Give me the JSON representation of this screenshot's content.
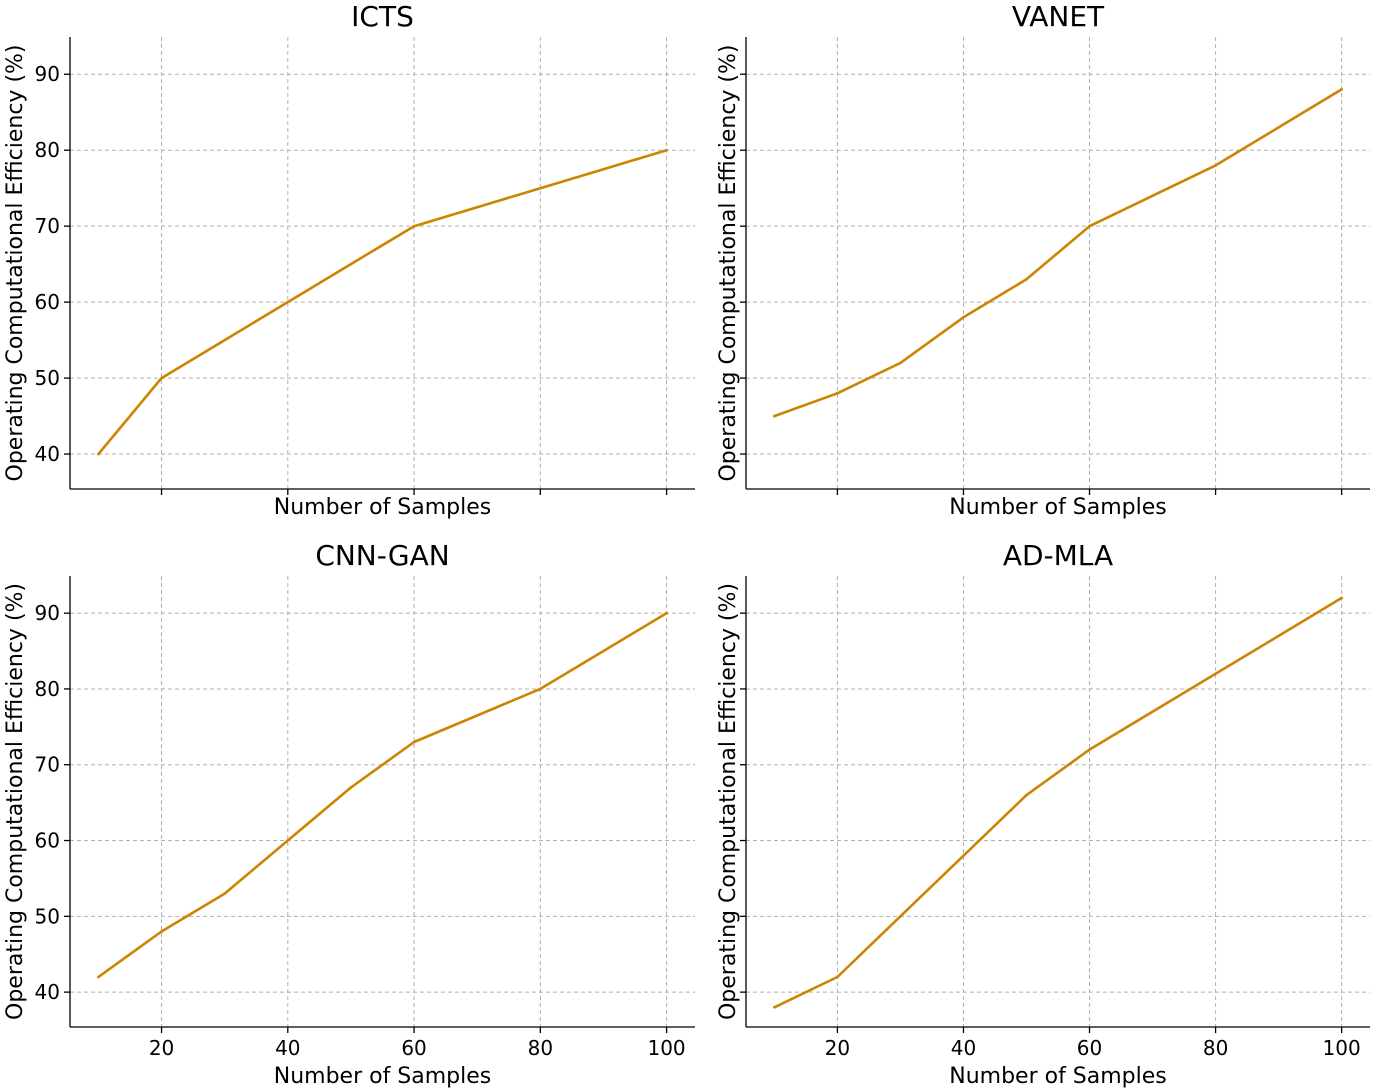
{
  "chart_data": [
    {
      "type": "line",
      "title": "ICTS",
      "xlabel": "Number of Samples",
      "ylabel": "Operating Computational Efficiency (%)",
      "x": [
        10,
        20,
        30,
        40,
        50,
        60,
        70,
        80,
        90,
        100
      ],
      "series": [
        {
          "name": "ICTS",
          "values": [
            40,
            50,
            55,
            60,
            65,
            70,
            72.5,
            75,
            77.5,
            80
          ]
        }
      ],
      "xlim": [
        5.5,
        104.5
      ],
      "ylim": [
        35.4,
        94.9
      ],
      "xticks": [
        20,
        40,
        60,
        80,
        100
      ],
      "xtick_labels": [],
      "yticks": [
        40,
        50,
        60,
        70,
        80,
        90
      ],
      "ytick_labels": [
        "40",
        "50",
        "60",
        "70",
        "80",
        "90"
      ],
      "grid": true,
      "color": "#cc8500"
    },
    {
      "type": "line",
      "title": "VANET",
      "xlabel": "Number of Samples",
      "ylabel": "Operating Computational Efficiency (%)",
      "x": [
        10,
        20,
        30,
        40,
        50,
        60,
        70,
        80,
        90,
        100
      ],
      "series": [
        {
          "name": "VANET",
          "values": [
            45,
            48,
            52,
            58,
            63,
            70,
            74,
            78,
            83,
            88
          ]
        }
      ],
      "xlim": [
        5.5,
        104.5
      ],
      "ylim": [
        35.4,
        94.9
      ],
      "xticks": [
        20,
        40,
        60,
        80,
        100
      ],
      "xtick_labels": [],
      "yticks": [
        40,
        50,
        60,
        70,
        80,
        90
      ],
      "ytick_labels": [],
      "grid": true,
      "color": "#cc8500"
    },
    {
      "type": "line",
      "title": "CNN-GAN",
      "xlabel": "Number of Samples",
      "ylabel": "Operating Computational Efficiency (%)",
      "x": [
        10,
        20,
        30,
        40,
        50,
        60,
        70,
        80,
        90,
        100
      ],
      "series": [
        {
          "name": "CNN-GAN",
          "values": [
            42,
            48,
            53,
            60,
            67,
            73,
            76.5,
            80,
            85,
            90
          ]
        }
      ],
      "xlim": [
        5.5,
        104.5
      ],
      "ylim": [
        35.4,
        94.9
      ],
      "xticks": [
        20,
        40,
        60,
        80,
        100
      ],
      "xtick_labels": [
        "20",
        "40",
        "60",
        "80",
        "100"
      ],
      "yticks": [
        40,
        50,
        60,
        70,
        80,
        90
      ],
      "ytick_labels": [
        "40",
        "50",
        "60",
        "70",
        "80",
        "90"
      ],
      "grid": true,
      "color": "#cc8500"
    },
    {
      "type": "line",
      "title": "AD-MLA",
      "xlabel": "Number of Samples",
      "ylabel": "Operating Computational Efficiency (%)",
      "x": [
        10,
        20,
        30,
        40,
        50,
        60,
        70,
        80,
        90,
        100
      ],
      "series": [
        {
          "name": "AD-MLA",
          "values": [
            38,
            42,
            50,
            58,
            66,
            72,
            77,
            82,
            87,
            92
          ]
        }
      ],
      "xlim": [
        5.5,
        104.5
      ],
      "ylim": [
        35.4,
        94.9
      ],
      "xticks": [
        20,
        40,
        60,
        80,
        100
      ],
      "xtick_labels": [
        "20",
        "40",
        "60",
        "80",
        "100"
      ],
      "yticks": [
        40,
        50,
        60,
        70,
        80,
        90
      ],
      "ytick_labels": [],
      "grid": true,
      "color": "#cc8500"
    }
  ]
}
